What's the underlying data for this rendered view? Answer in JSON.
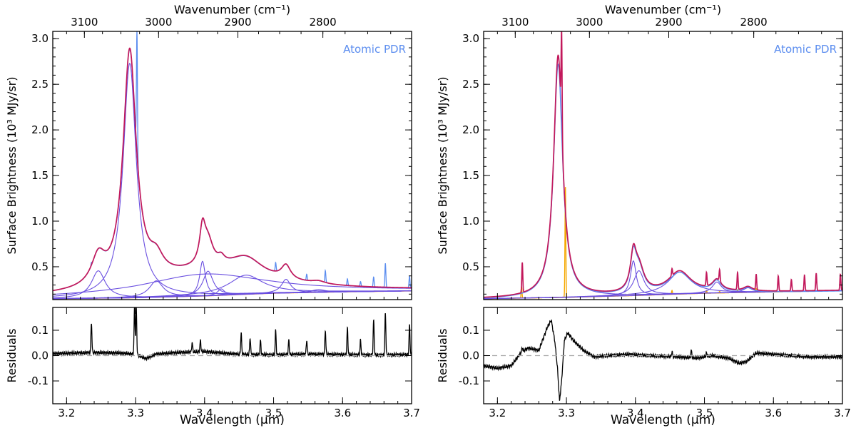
{
  "chart_data": {
    "type": "line",
    "panels": [
      {
        "annotation": "Atomic PDR",
        "top_axis": {
          "label": "Wavenumber (cm⁻¹)",
          "ticks": [
            3100,
            3000,
            2900,
            2800
          ]
        },
        "xlabel": "Wavelength (μm)",
        "xlim": [
          3.18,
          3.7
        ],
        "x_ticks": [
          3.2,
          3.3,
          3.4,
          3.5,
          3.6,
          3.7
        ],
        "main": {
          "ylabel": "Surface Brightness (10³ MJy/sr)",
          "ylim": [
            0.14,
            3.08
          ],
          "y_ticks": [
            0.5,
            1.0,
            1.5,
            2.0,
            2.5,
            3.0
          ],
          "continuum": {
            "color": "#ff8c1a",
            "points": [
              [
                3.18,
                0.15
              ],
              [
                3.3,
                0.16
              ],
              [
                3.4,
                0.18
              ],
              [
                3.5,
                0.21
              ],
              [
                3.6,
                0.225
              ],
              [
                3.7,
                0.235
              ]
            ]
          },
          "observed": {
            "color": "#5b8def",
            "spikes": [
              [
                3.236,
                0.55
              ],
              [
                3.302,
                3.1
              ],
              [
                3.382,
                0.47
              ],
              [
                3.394,
                0.46
              ],
              [
                3.453,
                0.56
              ],
              [
                3.466,
                0.52
              ],
              [
                3.481,
                0.5
              ],
              [
                3.503,
                0.55
              ],
              [
                3.522,
                0.47
              ],
              [
                3.548,
                0.42
              ],
              [
                3.575,
                0.46
              ],
              [
                3.607,
                0.37
              ],
              [
                3.626,
                0.34
              ],
              [
                3.645,
                0.39
              ],
              [
                3.662,
                0.54
              ],
              [
                3.697,
                0.4
              ]
            ]
          },
          "model": {
            "color": "#c2185b",
            "components": [
              [
                3.246,
                0.3,
                0.012
              ],
              [
                3.2915,
                2.57,
                0.0115
              ],
              [
                3.33,
                0.18,
                0.012
              ],
              [
                3.397,
                0.38,
                0.005
              ],
              [
                3.405,
                0.27,
                0.009
              ],
              [
                3.424,
                0.07,
                0.006
              ],
              [
                3.46,
                0.21,
                0.03
              ],
              [
                3.518,
                0.15,
                0.008
              ],
              [
                3.565,
                0.03,
                0.012
              ],
              [
                3.4,
                0.24,
                0.11
              ]
            ]
          }
        },
        "residuals": {
          "ylabel": "Residuals",
          "ylim": [
            -0.19,
            0.19
          ],
          "y_ticks": [
            -0.1,
            0.0,
            0.1
          ],
          "zero_line": true,
          "baseline": [
            [
              3.18,
              0.008
            ],
            [
              3.24,
              0.012
            ],
            [
              3.28,
              0.01
            ],
            [
              3.3,
              0.005
            ],
            [
              3.315,
              -0.012
            ],
            [
              3.33,
              0.006
            ],
            [
              3.36,
              0.012
            ],
            [
              3.4,
              0.016
            ],
            [
              3.45,
              0.005
            ],
            [
              3.5,
              0.003
            ],
            [
              3.55,
              0.006
            ],
            [
              3.6,
              0.004
            ],
            [
              3.65,
              0.002
            ],
            [
              3.7,
              0.004
            ]
          ],
          "spikes": [
            [
              3.236,
              0.13
            ],
            [
              3.2985,
              0.19
            ],
            [
              3.301,
              0.19
            ],
            [
              3.382,
              0.05
            ],
            [
              3.394,
              0.06
            ],
            [
              3.453,
              0.09
            ],
            [
              3.466,
              0.07
            ],
            [
              3.481,
              0.06
            ],
            [
              3.503,
              0.1
            ],
            [
              3.522,
              0.06
            ],
            [
              3.548,
              0.06
            ],
            [
              3.575,
              0.1
            ],
            [
              3.607,
              0.11
            ],
            [
              3.626,
              0.06
            ],
            [
              3.645,
              0.14
            ],
            [
              3.662,
              0.17
            ],
            [
              3.697,
              0.12
            ]
          ]
        }
      },
      {
        "annotation": "Atomic PDR",
        "top_axis": {
          "label": "Wavenumber (cm⁻¹)",
          "ticks": [
            3100,
            3000,
            2900,
            2800
          ]
        },
        "xlabel": "Wavelength (μm)",
        "xlim": [
          3.18,
          3.7
        ],
        "x_ticks": [
          3.2,
          3.3,
          3.4,
          3.5,
          3.6,
          3.7
        ],
        "main": {
          "ylabel": "Surface Brightness (10³ MJy/sr)",
          "ylim": [
            0.14,
            3.08
          ],
          "y_ticks": [
            0.5,
            1.0,
            1.5,
            2.0,
            2.5,
            3.0
          ],
          "continuum": {
            "color": "#ff8c1a",
            "points": [
              [
                3.18,
                0.15
              ],
              [
                3.3,
                0.165
              ],
              [
                3.4,
                0.185
              ],
              [
                3.5,
                0.21
              ],
              [
                3.6,
                0.225
              ],
              [
                3.7,
                0.24
              ]
            ]
          },
          "lines": {
            "color": "#f5a800",
            "spikes": [
              [
                3.235,
                0.28
              ],
              [
                3.2985,
                1.38
              ],
              [
                3.453,
                0.24
              ],
              [
                3.503,
                0.24
              ],
              [
                3.522,
                0.23
              ],
              [
                3.548,
                0.25
              ],
              [
                3.575,
                0.26
              ]
            ]
          },
          "observed": {
            "color": "#5b8def",
            "spikes": []
          },
          "model": {
            "color": "#c2185b",
            "components": [
              [
                3.288,
                2.65,
                0.0078
              ],
              [
                3.397,
                0.38,
                0.005
              ],
              [
                3.405,
                0.27,
                0.009
              ],
              [
                3.464,
                0.24,
                0.02
              ],
              [
                3.518,
                0.12,
                0.008
              ],
              [
                3.563,
                0.05,
                0.008
              ]
            ]
          },
          "model_spikes": [
            [
              3.236,
              0.55
            ],
            [
              3.293,
              3.1
            ],
            [
              3.453,
              0.48
            ],
            [
              3.466,
              0.43
            ],
            [
              3.503,
              0.44
            ],
            [
              3.522,
              0.47
            ],
            [
              3.548,
              0.44
            ],
            [
              3.575,
              0.42
            ],
            [
              3.607,
              0.4
            ],
            [
              3.626,
              0.36
            ],
            [
              3.645,
              0.41
            ],
            [
              3.662,
              0.43
            ],
            [
              3.697,
              0.42
            ]
          ]
        },
        "residuals": {
          "ylabel": "Residuals",
          "ylim": [
            -0.19,
            0.19
          ],
          "y_ticks": [
            -0.1,
            0.0,
            0.1
          ],
          "zero_line": true,
          "baseline": [
            [
              3.18,
              -0.04
            ],
            [
              3.2,
              -0.05
            ],
            [
              3.22,
              -0.04
            ],
            [
              3.235,
              0.015
            ],
            [
              3.245,
              0.03
            ],
            [
              3.26,
              0.02
            ],
            [
              3.272,
              0.11
            ],
            [
              3.278,
              0.14
            ],
            [
              3.283,
              0.06
            ],
            [
              3.287,
              -0.05
            ],
            [
              3.29,
              -0.18
            ],
            [
              3.293,
              -0.1
            ],
            [
              3.297,
              0.06
            ],
            [
              3.302,
              0.09
            ],
            [
              3.31,
              0.06
            ],
            [
              3.325,
              0.02
            ],
            [
              3.34,
              -0.005
            ],
            [
              3.36,
              0.0
            ],
            [
              3.39,
              0.005
            ],
            [
              3.42,
              0.0
            ],
            [
              3.46,
              -0.005
            ],
            [
              3.49,
              -0.01
            ],
            [
              3.51,
              0.0
            ],
            [
              3.535,
              -0.01
            ],
            [
              3.55,
              -0.03
            ],
            [
              3.56,
              -0.025
            ],
            [
              3.575,
              0.01
            ],
            [
              3.6,
              0.005
            ],
            [
              3.65,
              -0.005
            ],
            [
              3.7,
              -0.005
            ]
          ],
          "spikes": [
            [
              3.236,
              0.03
            ],
            [
              3.453,
              0.015
            ],
            [
              3.481,
              0.02
            ],
            [
              3.503,
              0.01
            ]
          ]
        }
      }
    ]
  }
}
